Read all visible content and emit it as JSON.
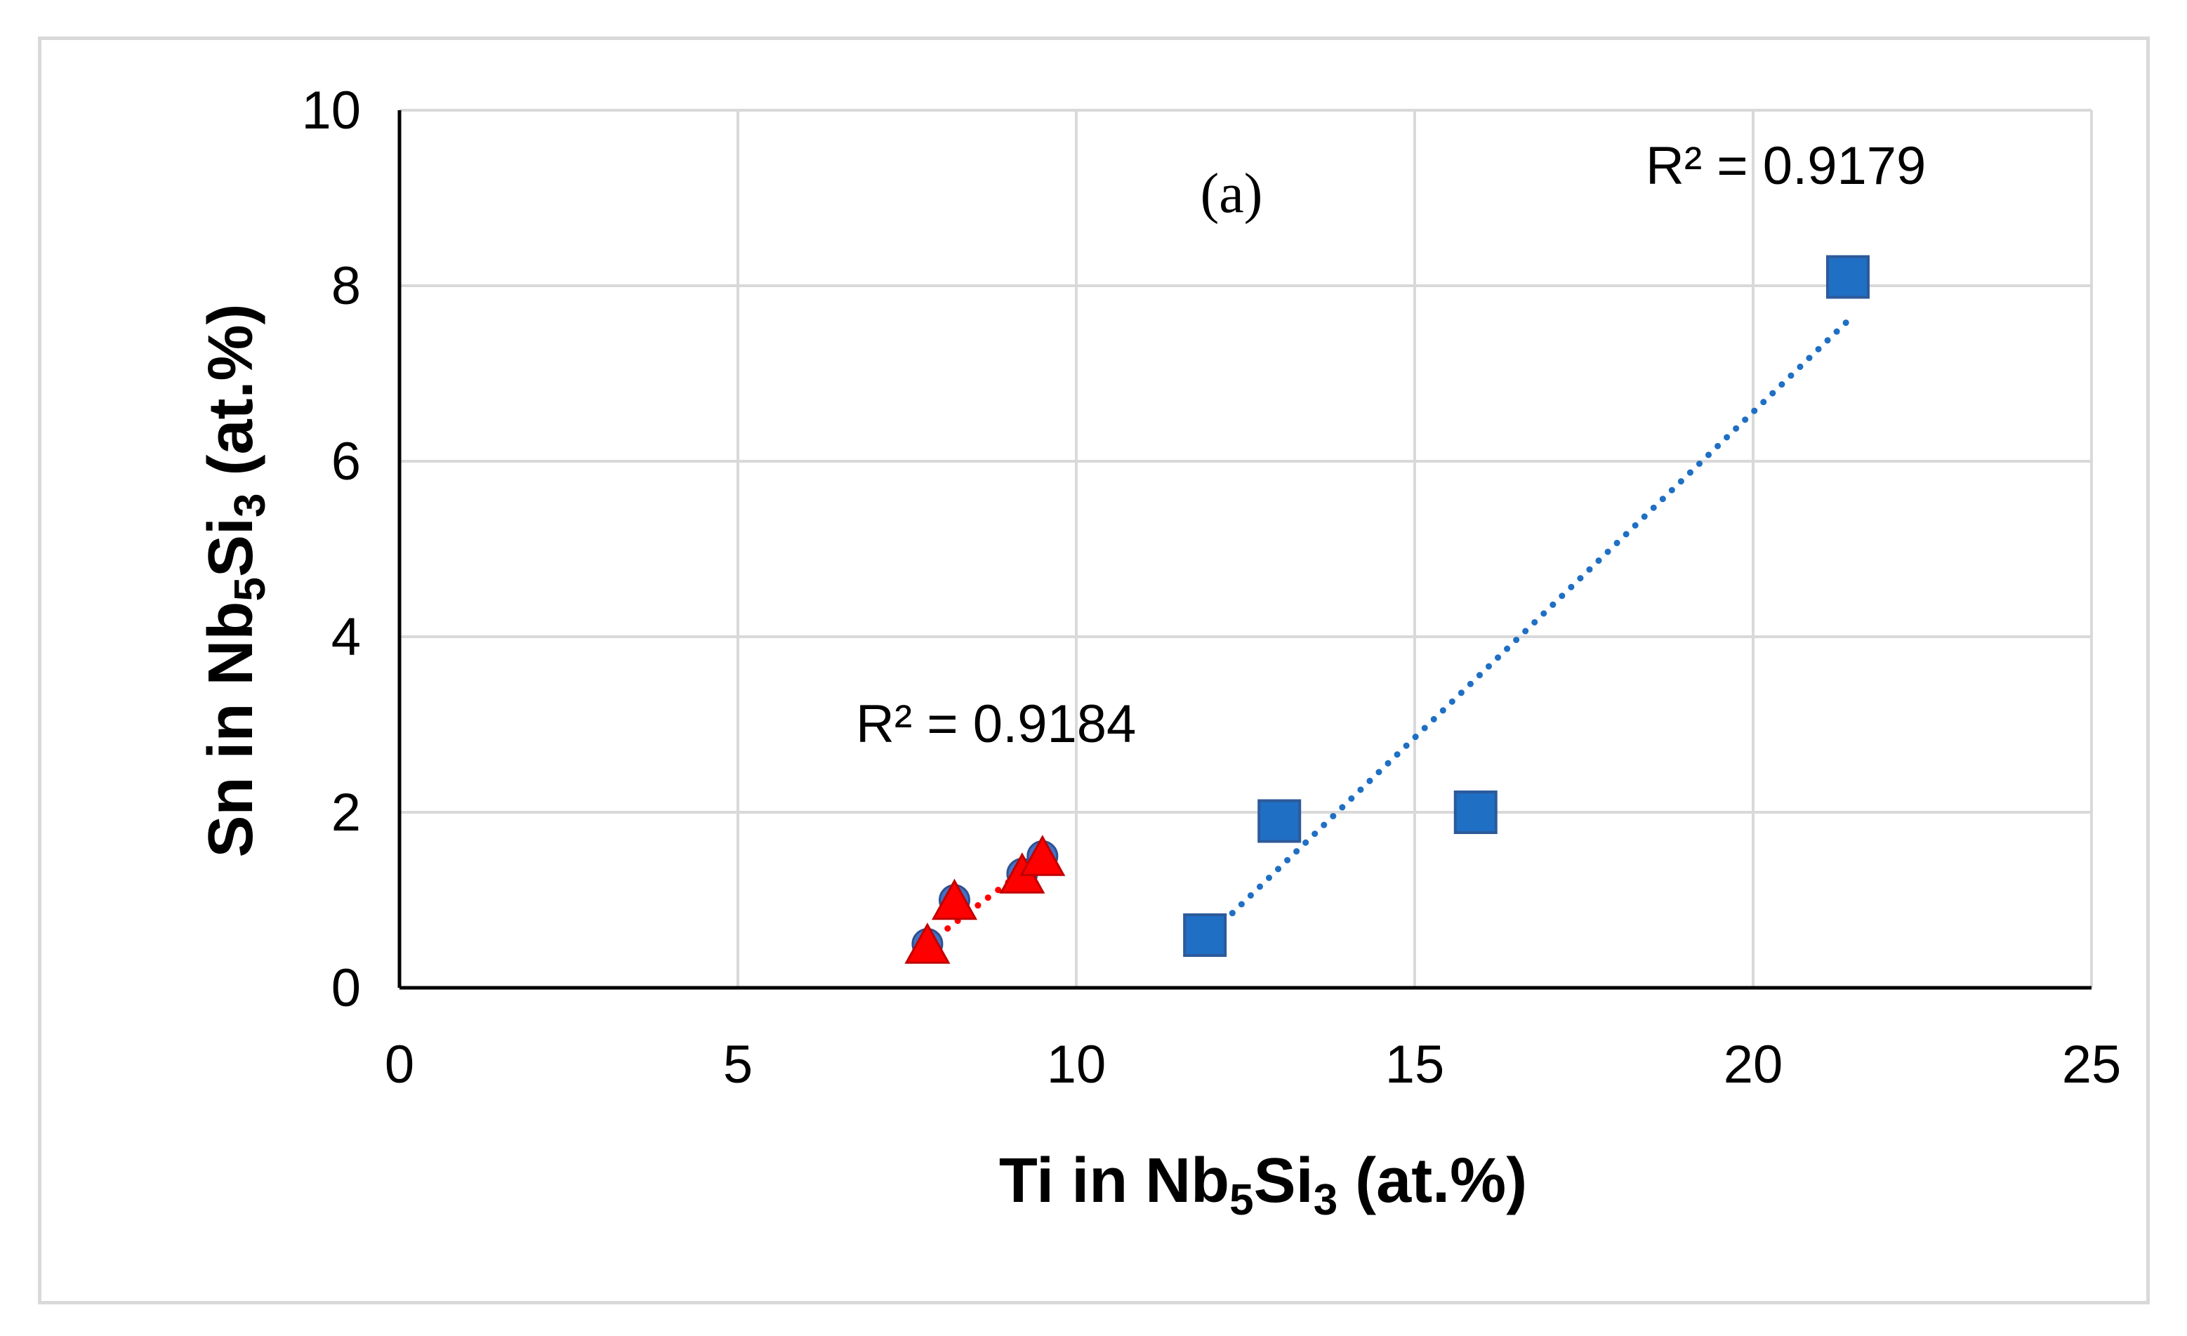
{
  "chart_data": {
    "type": "scatter",
    "title": "",
    "xlabel": {
      "base": "Ti in Nb",
      "sub1": "5",
      "mid": "Si",
      "sub2": "3",
      "tail": " (at.%)"
    },
    "ylabel": {
      "base": "Sn in Nb",
      "sub1": "5",
      "mid": "Si",
      "sub2": "3",
      "tail": " (at.%)"
    },
    "xlim": [
      0,
      25
    ],
    "ylim": [
      0,
      10
    ],
    "xticks": [
      0,
      5,
      10,
      15,
      20,
      25
    ],
    "yticks": [
      0,
      2,
      4,
      6,
      8,
      10
    ],
    "grid": true,
    "panel_label": "(a)",
    "series": [
      {
        "marker": "square",
        "color": "#1f6fc4",
        "points": [
          [
            11.9,
            0.6
          ],
          [
            13.0,
            1.9
          ],
          [
            15.9,
            2.0
          ],
          [
            21.4,
            8.1
          ]
        ],
        "trendline": {
          "x": [
            11.9,
            21.4
          ],
          "y": [
            0.55,
            7.6
          ],
          "color": "#1f6fc4",
          "style": "dotted"
        },
        "r2_label": "R² = 0.9179"
      },
      {
        "marker": "circle",
        "color": "#4472c4",
        "points": [
          [
            7.8,
            0.5
          ],
          [
            8.2,
            1.0
          ],
          [
            9.2,
            1.3
          ],
          [
            9.5,
            1.5
          ]
        ]
      },
      {
        "marker": "triangle",
        "color": "#ff0000",
        "points": [
          [
            7.8,
            0.45
          ],
          [
            8.2,
            0.95
          ],
          [
            9.2,
            1.25
          ],
          [
            9.5,
            1.45
          ]
        ],
        "trendline": {
          "x": [
            7.8,
            9.5
          ],
          "y": [
            0.5,
            1.5
          ],
          "color": "#ff0000",
          "style": "dotted"
        },
        "r2_label": "R² = 0.9184"
      }
    ]
  }
}
